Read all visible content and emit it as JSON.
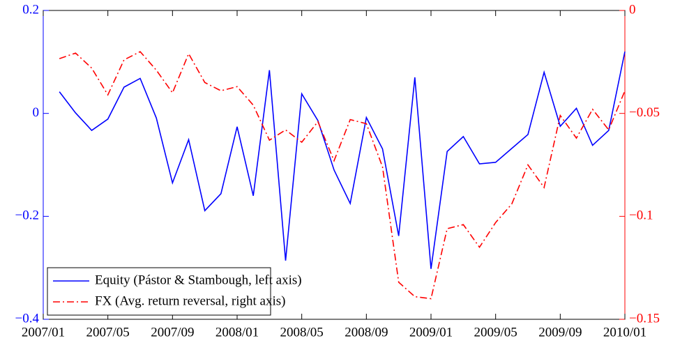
{
  "chart_data": {
    "type": "line",
    "categories": [
      "2007/01",
      null,
      null,
      null,
      "2007/05",
      null,
      null,
      null,
      "2007/09",
      null,
      null,
      null,
      "2008/01",
      null,
      null,
      null,
      "2008/05",
      null,
      null,
      null,
      "2008/09",
      null,
      null,
      null,
      "2009/01",
      null,
      null,
      null,
      "2009/05",
      null,
      null,
      null,
      "2009/09",
      null,
      null,
      null,
      "2010/01"
    ],
    "series": [
      {
        "name": "Equity (Pástor & Stambough, left axis)",
        "color": "#0000ff",
        "dash": "solid",
        "values": [
          null,
          0.042,
          0.001,
          -0.033,
          -0.011,
          0.051,
          0.068,
          -0.009,
          -0.135,
          -0.051,
          -0.189,
          -0.156,
          -0.026,
          -0.16,
          0.084,
          -0.286,
          0.038,
          -0.014,
          -0.11,
          -0.175,
          -0.008,
          -0.069,
          -0.238,
          0.07,
          -0.302,
          -0.074,
          -0.045,
          -0.098,
          -0.095,
          -0.068,
          -0.041,
          0.08,
          -0.025,
          0.01,
          -0.062,
          -0.033,
          0.12
        ]
      },
      {
        "name": "FX (Avg. return reversal, right axis)",
        "color": "#ff0000",
        "dash": "dashdot",
        "axis": "y2",
        "values": [
          null,
          -0.0234,
          -0.0207,
          -0.028,
          -0.041,
          -0.024,
          -0.02,
          -0.029,
          -0.04,
          -0.021,
          -0.035,
          -0.039,
          -0.037,
          -0.046,
          -0.063,
          -0.058,
          -0.064,
          -0.054,
          -0.073,
          -0.053,
          -0.055,
          -0.076,
          -0.132,
          -0.139,
          -0.14,
          -0.106,
          -0.104,
          -0.115,
          -0.103,
          -0.094,
          -0.075,
          -0.086,
          -0.051,
          -0.062,
          -0.048,
          -0.058,
          -0.039
        ]
      }
    ],
    "ylim": [
      -0.4,
      0.2
    ],
    "yticks": [
      {
        "value": -0.4,
        "label": "−0.4"
      },
      {
        "value": -0.2,
        "label": "−0.2"
      },
      0,
      0.2
    ],
    "y2lim": [
      -0.15,
      0
    ],
    "y2ticks": [
      {
        "value": -0.15,
        "label": "−0.15"
      },
      {
        "value": -0.1,
        "label": "−0.1"
      },
      {
        "value": -0.05,
        "label": "−0.05"
      },
      0
    ],
    "legend": "lower left",
    "grid": false
  }
}
